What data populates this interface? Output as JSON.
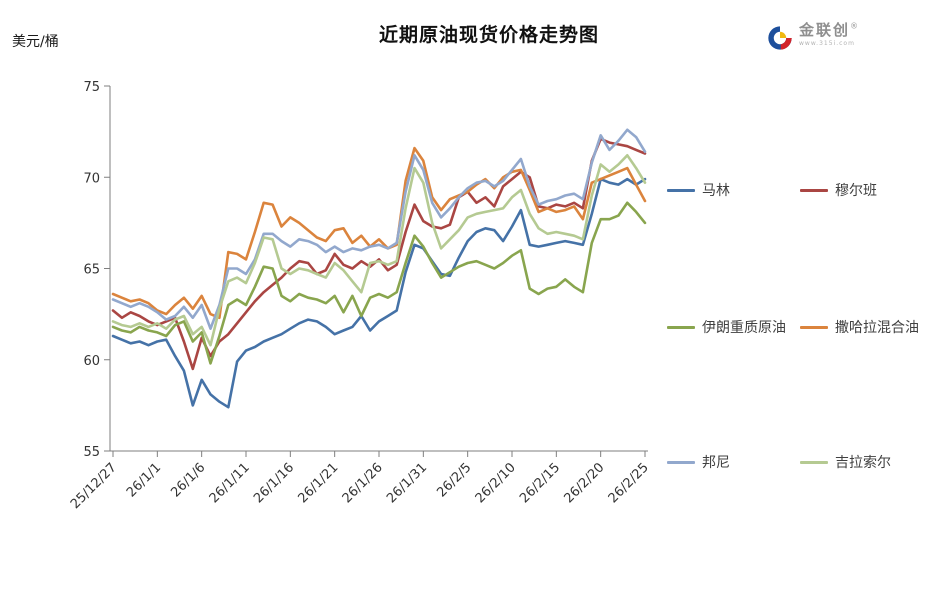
{
  "header": {
    "title": "近期原油现货价格走势图",
    "y_unit_label": "美元/桶"
  },
  "logo": {
    "name": "金联创",
    "registered_mark": "®",
    "url_text": "www.315i.com",
    "colors": {
      "blue": "#1d4f9c",
      "red": "#d2232a",
      "yellow": "#f0b810"
    }
  },
  "chart_data": {
    "type": "line",
    "title": "近期原油现货价格走势图",
    "ylabel": "美元/桶",
    "xlabel": "",
    "ylim": [
      55,
      75
    ],
    "y_ticks": [
      55,
      60,
      65,
      70,
      75
    ],
    "grid": false,
    "legend_position": "right",
    "x_tick_every": 5,
    "x_tick_labels": [
      "25/12/27",
      "26/1/1",
      "26/1/6",
      "26/1/11",
      "26/1/16",
      "26/1/21",
      "26/1/26",
      "26/1/31",
      "26/2/5",
      "26/2/10",
      "26/2/15",
      "26/2/20",
      "26/2/25"
    ],
    "series": [
      {
        "name": "马林",
        "color": "#4572A7",
        "values": [
          61.3,
          61.1,
          60.9,
          61.0,
          60.8,
          61.0,
          61.1,
          60.2,
          59.4,
          57.5,
          58.9,
          58.1,
          57.7,
          57.4,
          59.9,
          60.5,
          60.7,
          61.0,
          61.2,
          61.4,
          61.7,
          62.0,
          62.2,
          62.1,
          61.8,
          61.4,
          61.6,
          61.8,
          62.4,
          61.6,
          62.1,
          62.4,
          62.7,
          64.8,
          66.3,
          66.1,
          65.4,
          64.7,
          64.6,
          65.6,
          66.5,
          67.0,
          67.2,
          67.1,
          66.5,
          67.3,
          68.2,
          66.3,
          66.2,
          66.3,
          66.4,
          66.5,
          66.4,
          66.3,
          68.0,
          69.9,
          69.7,
          69.6,
          69.9,
          69.6,
          69.9
        ]
      },
      {
        "name": "穆尔班",
        "color": "#AA4643",
        "values": [
          62.7,
          62.3,
          62.6,
          62.4,
          62.1,
          61.9,
          62.1,
          62.3,
          61.0,
          59.5,
          61.2,
          60.2,
          61.0,
          61.4,
          62.0,
          62.6,
          63.2,
          63.7,
          64.1,
          64.5,
          65.0,
          65.4,
          65.3,
          64.7,
          64.9,
          65.8,
          65.2,
          65.0,
          65.4,
          65.1,
          65.5,
          64.9,
          65.2,
          67.0,
          68.5,
          67.6,
          67.3,
          67.2,
          67.4,
          68.9,
          69.2,
          68.6,
          68.9,
          68.4,
          69.5,
          69.9,
          70.3,
          70.0,
          68.4,
          68.3,
          68.5,
          68.4,
          68.6,
          68.3,
          70.9,
          72.1,
          71.9,
          71.8,
          71.7,
          71.5,
          71.3
        ]
      },
      {
        "name": "伊朗重质原油",
        "color": "#89A54E",
        "values": [
          61.8,
          61.6,
          61.5,
          61.8,
          61.6,
          61.5,
          61.3,
          61.9,
          62.1,
          61.0,
          61.5,
          59.8,
          61.3,
          63.0,
          63.3,
          63.0,
          64.0,
          65.1,
          65.0,
          63.5,
          63.2,
          63.6,
          63.4,
          63.3,
          63.1,
          63.5,
          62.6,
          63.5,
          62.4,
          63.4,
          63.6,
          63.4,
          63.7,
          65.3,
          66.8,
          66.2,
          65.3,
          64.5,
          64.8,
          65.1,
          65.3,
          65.4,
          65.2,
          65.0,
          65.3,
          65.7,
          66.0,
          63.9,
          63.6,
          63.9,
          64.0,
          64.4,
          64.0,
          63.7,
          66.4,
          67.7,
          67.7,
          67.9,
          68.6,
          68.1,
          67.5
        ]
      },
      {
        "name": "撒哈拉混合油",
        "color": "#DB843D",
        "values": [
          63.6,
          63.4,
          63.2,
          63.3,
          63.1,
          62.7,
          62.5,
          63.0,
          63.4,
          62.8,
          63.5,
          62.5,
          62.3,
          65.9,
          65.8,
          65.5,
          67.0,
          68.6,
          68.5,
          67.3,
          67.8,
          67.5,
          67.1,
          66.7,
          66.5,
          67.1,
          67.2,
          66.4,
          66.8,
          66.2,
          66.6,
          66.1,
          66.3,
          69.8,
          71.6,
          70.9,
          68.9,
          68.2,
          68.8,
          69.0,
          69.2,
          69.6,
          69.9,
          69.4,
          70.0,
          70.3,
          70.4,
          69.3,
          68.1,
          68.3,
          68.1,
          68.2,
          68.4,
          67.7,
          69.7,
          69.9,
          70.1,
          70.3,
          70.5,
          69.6,
          68.7
        ]
      },
      {
        "name": "邦尼",
        "color": "#92A8CD",
        "values": [
          63.3,
          63.1,
          62.9,
          63.1,
          62.9,
          62.6,
          62.2,
          62.4,
          62.9,
          62.3,
          63.0,
          61.7,
          63.0,
          65.0,
          65.0,
          64.7,
          65.5,
          66.9,
          66.9,
          66.5,
          66.2,
          66.6,
          66.5,
          66.3,
          65.9,
          66.2,
          65.9,
          66.1,
          66.0,
          66.2,
          66.3,
          66.1,
          66.4,
          69.2,
          71.2,
          70.4,
          68.6,
          67.8,
          68.3,
          68.9,
          69.4,
          69.7,
          69.8,
          69.5,
          69.8,
          70.4,
          71.0,
          69.5,
          68.5,
          68.7,
          68.8,
          69.0,
          69.1,
          68.8,
          70.8,
          72.3,
          71.5,
          72.0,
          72.6,
          72.2,
          71.4
        ]
      },
      {
        "name": "吉拉索尔",
        "color": "#B5CA92",
        "values": [
          62.1,
          61.9,
          61.8,
          62.0,
          61.8,
          62.0,
          61.7,
          62.2,
          62.4,
          61.4,
          61.8,
          60.8,
          62.8,
          64.3,
          64.5,
          64.2,
          65.3,
          66.7,
          66.6,
          65.0,
          64.7,
          65.0,
          64.9,
          64.7,
          64.5,
          65.3,
          64.9,
          64.3,
          63.7,
          65.3,
          65.4,
          65.2,
          65.4,
          68.3,
          70.5,
          69.7,
          67.5,
          66.1,
          66.6,
          67.1,
          67.8,
          68.0,
          68.1,
          68.2,
          68.3,
          68.9,
          69.3,
          68.0,
          67.2,
          66.9,
          67.0,
          66.9,
          66.8,
          66.6,
          69.0,
          70.7,
          70.3,
          70.7,
          71.2,
          70.5,
          69.7
        ]
      }
    ]
  }
}
